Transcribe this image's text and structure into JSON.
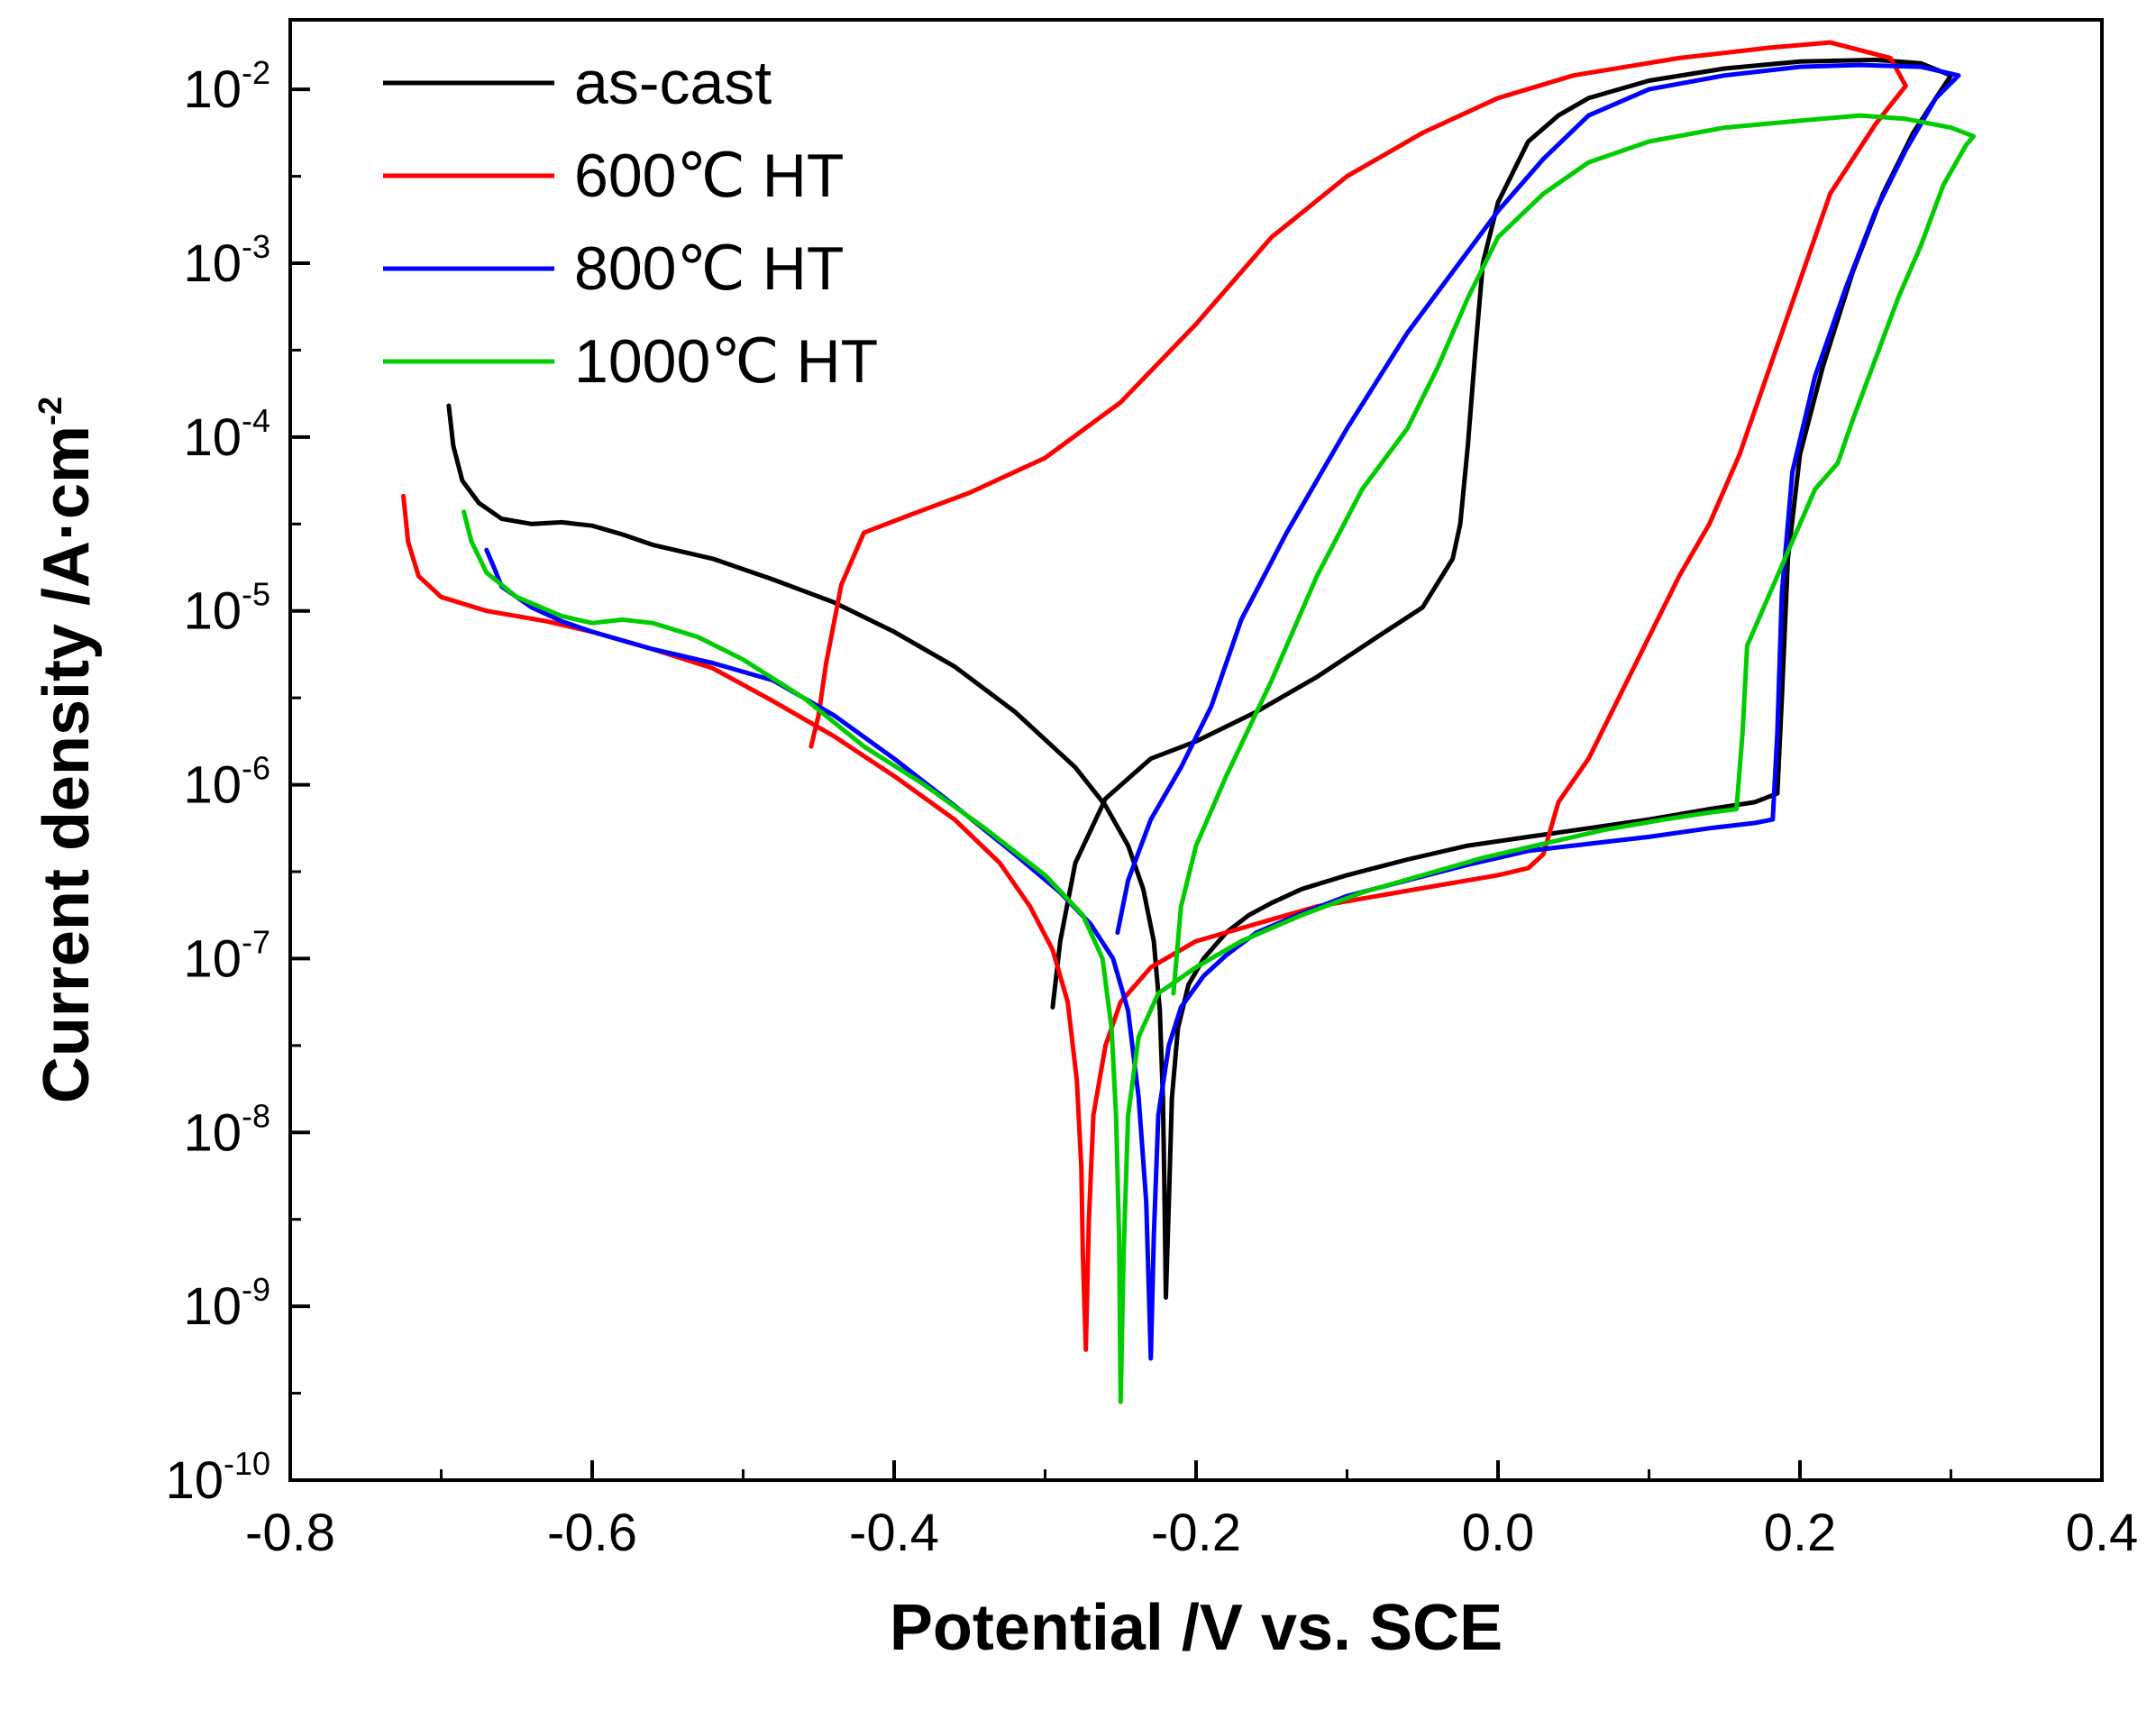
{
  "chart_data": {
    "type": "line",
    "title": "",
    "xlabel": "Potential /V vs. SCE",
    "ylabel_main": "Current density /A·cm",
    "ylabel_sup": "-2",
    "xlim": [
      -0.8,
      0.4
    ],
    "ylim_log10": [
      -10,
      -1.6
    ],
    "yscale": "log",
    "x_ticks": [
      {
        "value": -0.8,
        "label": "-0.8"
      },
      {
        "value": -0.6,
        "label": "-0.6"
      },
      {
        "value": -0.4,
        "label": "-0.4"
      },
      {
        "value": -0.2,
        "label": "-0.2"
      },
      {
        "value": 0.0,
        "label": "0.0"
      },
      {
        "value": 0.2,
        "label": "0.2"
      },
      {
        "value": 0.4,
        "label": "0.4"
      }
    ],
    "y_ticks": [
      {
        "exp": -2,
        "base": "10",
        "sup": "-2"
      },
      {
        "exp": -3,
        "base": "10",
        "sup": "-3"
      },
      {
        "exp": -4,
        "base": "10",
        "sup": "-4"
      },
      {
        "exp": -5,
        "base": "10",
        "sup": "-5"
      },
      {
        "exp": -6,
        "base": "10",
        "sup": "-6"
      },
      {
        "exp": -7,
        "base": "10",
        "sup": "-7"
      },
      {
        "exp": -8,
        "base": "10",
        "sup": "-8"
      },
      {
        "exp": -9,
        "base": "10",
        "sup": "-9"
      },
      {
        "exp": -10,
        "base": "10",
        "sup": "-10"
      }
    ],
    "legend_position": "top-left",
    "series": [
      {
        "name": "as-cast",
        "color": "#000000",
        "points": [
          [
            -0.695,
            -3.82
          ],
          [
            -0.692,
            -4.05
          ],
          [
            -0.686,
            -4.25
          ],
          [
            -0.675,
            -4.38
          ],
          [
            -0.66,
            -4.47
          ],
          [
            -0.64,
            -4.5
          ],
          [
            -0.62,
            -4.49
          ],
          [
            -0.6,
            -4.51
          ],
          [
            -0.58,
            -4.56
          ],
          [
            -0.56,
            -4.62
          ],
          [
            -0.52,
            -4.7
          ],
          [
            -0.48,
            -4.82
          ],
          [
            -0.44,
            -4.95
          ],
          [
            -0.4,
            -5.12
          ],
          [
            -0.36,
            -5.32
          ],
          [
            -0.32,
            -5.58
          ],
          [
            -0.28,
            -5.9
          ],
          [
            -0.26,
            -6.12
          ],
          [
            -0.245,
            -6.35
          ],
          [
            -0.235,
            -6.6
          ],
          [
            -0.228,
            -6.9
          ],
          [
            -0.224,
            -7.3
          ],
          [
            -0.222,
            -7.8
          ],
          [
            -0.221,
            -8.3
          ],
          [
            -0.22,
            -8.95
          ],
          [
            -0.218,
            -8.4
          ],
          [
            -0.216,
            -7.8
          ],
          [
            -0.212,
            -7.4
          ],
          [
            -0.205,
            -7.15
          ],
          [
            -0.195,
            -7.0
          ],
          [
            -0.18,
            -6.85
          ],
          [
            -0.165,
            -6.75
          ],
          [
            -0.15,
            -6.68
          ],
          [
            -0.13,
            -6.6
          ],
          [
            -0.1,
            -6.52
          ],
          [
            -0.06,
            -6.43
          ],
          [
            -0.02,
            -6.35
          ],
          [
            0.02,
            -6.3
          ],
          [
            0.06,
            -6.25
          ],
          [
            0.1,
            -6.2
          ],
          [
            0.14,
            -6.14
          ],
          [
            0.17,
            -6.1
          ],
          [
            0.185,
            -6.05
          ],
          [
            0.188,
            -5.5
          ],
          [
            0.192,
            -4.7
          ],
          [
            0.2,
            -4.1
          ],
          [
            0.215,
            -3.6
          ],
          [
            0.235,
            -3.05
          ],
          [
            0.255,
            -2.6
          ],
          [
            0.275,
            -2.25
          ],
          [
            0.29,
            -2.05
          ],
          [
            0.3,
            -1.92
          ],
          [
            0.28,
            -1.85
          ],
          [
            0.25,
            -1.83
          ],
          [
            0.2,
            -1.84
          ],
          [
            0.15,
            -1.88
          ],
          [
            0.1,
            -1.95
          ],
          [
            0.06,
            -2.05
          ],
          [
            0.04,
            -2.15
          ],
          [
            0.02,
            -2.3
          ],
          [
            0.0,
            -2.65
          ],
          [
            -0.01,
            -3.0
          ],
          [
            -0.015,
            -3.5
          ],
          [
            -0.02,
            -4.05
          ],
          [
            -0.025,
            -4.5
          ],
          [
            -0.03,
            -4.7
          ],
          [
            -0.05,
            -4.98
          ],
          [
            -0.08,
            -5.15
          ],
          [
            -0.12,
            -5.38
          ],
          [
            -0.16,
            -5.58
          ],
          [
            -0.2,
            -5.75
          ],
          [
            -0.23,
            -5.85
          ],
          [
            -0.26,
            -6.08
          ],
          [
            -0.28,
            -6.45
          ],
          [
            -0.29,
            -6.9
          ],
          [
            -0.295,
            -7.28
          ]
        ]
      },
      {
        "name": "600℃ HT",
        "color": "#ff0000",
        "points": [
          [
            -0.725,
            -4.34
          ],
          [
            -0.722,
            -4.6
          ],
          [
            -0.715,
            -4.8
          ],
          [
            -0.7,
            -4.92
          ],
          [
            -0.67,
            -5.0
          ],
          [
            -0.63,
            -5.06
          ],
          [
            -0.6,
            -5.12
          ],
          [
            -0.56,
            -5.22
          ],
          [
            -0.52,
            -5.33
          ],
          [
            -0.48,
            -5.52
          ],
          [
            -0.44,
            -5.72
          ],
          [
            -0.4,
            -5.95
          ],
          [
            -0.36,
            -6.2
          ],
          [
            -0.33,
            -6.45
          ],
          [
            -0.31,
            -6.7
          ],
          [
            -0.295,
            -6.95
          ],
          [
            -0.285,
            -7.25
          ],
          [
            -0.279,
            -7.7
          ],
          [
            -0.276,
            -8.2
          ],
          [
            -0.275,
            -8.7
          ],
          [
            -0.273,
            -9.25
          ],
          [
            -0.271,
            -8.5
          ],
          [
            -0.268,
            -7.9
          ],
          [
            -0.26,
            -7.5
          ],
          [
            -0.25,
            -7.25
          ],
          [
            -0.23,
            -7.05
          ],
          [
            -0.2,
            -6.9
          ],
          [
            -0.16,
            -6.8
          ],
          [
            -0.12,
            -6.7
          ],
          [
            -0.08,
            -6.64
          ],
          [
            -0.04,
            -6.58
          ],
          [
            0.0,
            -6.52
          ],
          [
            0.02,
            -6.48
          ],
          [
            0.03,
            -6.4
          ],
          [
            0.04,
            -6.1
          ],
          [
            0.06,
            -5.85
          ],
          [
            0.08,
            -5.5
          ],
          [
            0.1,
            -5.15
          ],
          [
            0.12,
            -4.8
          ],
          [
            0.14,
            -4.5
          ],
          [
            0.16,
            -4.1
          ],
          [
            0.18,
            -3.6
          ],
          [
            0.2,
            -3.1
          ],
          [
            0.22,
            -2.6
          ],
          [
            0.25,
            -2.2
          ],
          [
            0.27,
            -1.98
          ],
          [
            0.26,
            -1.82
          ],
          [
            0.22,
            -1.73
          ],
          [
            0.18,
            -1.76
          ],
          [
            0.12,
            -1.82
          ],
          [
            0.05,
            -1.92
          ],
          [
            0.0,
            -2.05
          ],
          [
            -0.05,
            -2.25
          ],
          [
            -0.1,
            -2.5
          ],
          [
            -0.15,
            -2.85
          ],
          [
            -0.2,
            -3.35
          ],
          [
            -0.25,
            -3.8
          ],
          [
            -0.3,
            -4.12
          ],
          [
            -0.35,
            -4.32
          ],
          [
            -0.39,
            -4.45
          ],
          [
            -0.42,
            -4.55
          ],
          [
            -0.435,
            -4.85
          ],
          [
            -0.445,
            -5.3
          ],
          [
            -0.45,
            -5.6
          ],
          [
            -0.455,
            -5.78
          ]
        ]
      },
      {
        "name": "800℃ HT",
        "color": "#0000ff",
        "points": [
          [
            -0.67,
            -4.65
          ],
          [
            -0.665,
            -4.75
          ],
          [
            -0.66,
            -4.86
          ],
          [
            -0.64,
            -4.98
          ],
          [
            -0.62,
            -5.06
          ],
          [
            -0.6,
            -5.12
          ],
          [
            -0.56,
            -5.22
          ],
          [
            -0.52,
            -5.3
          ],
          [
            -0.48,
            -5.4
          ],
          [
            -0.44,
            -5.6
          ],
          [
            -0.4,
            -5.85
          ],
          [
            -0.36,
            -6.12
          ],
          [
            -0.32,
            -6.4
          ],
          [
            -0.29,
            -6.62
          ],
          [
            -0.27,
            -6.8
          ],
          [
            -0.255,
            -7.0
          ],
          [
            -0.245,
            -7.3
          ],
          [
            -0.238,
            -7.8
          ],
          [
            -0.233,
            -8.4
          ],
          [
            -0.23,
            -9.3
          ],
          [
            -0.228,
            -8.6
          ],
          [
            -0.225,
            -7.9
          ],
          [
            -0.218,
            -7.5
          ],
          [
            -0.21,
            -7.28
          ],
          [
            -0.195,
            -7.1
          ],
          [
            -0.18,
            -6.98
          ],
          [
            -0.16,
            -6.85
          ],
          [
            -0.13,
            -6.74
          ],
          [
            -0.1,
            -6.64
          ],
          [
            -0.06,
            -6.55
          ],
          [
            -0.02,
            -6.46
          ],
          [
            0.02,
            -6.38
          ],
          [
            0.06,
            -6.34
          ],
          [
            0.1,
            -6.3
          ],
          [
            0.14,
            -6.25
          ],
          [
            0.17,
            -6.22
          ],
          [
            0.182,
            -6.2
          ],
          [
            0.185,
            -5.7
          ],
          [
            0.188,
            -4.9
          ],
          [
            0.195,
            -4.2
          ],
          [
            0.21,
            -3.65
          ],
          [
            0.23,
            -3.15
          ],
          [
            0.25,
            -2.7
          ],
          [
            0.27,
            -2.35
          ],
          [
            0.29,
            -2.05
          ],
          [
            0.305,
            -1.92
          ],
          [
            0.28,
            -1.87
          ],
          [
            0.24,
            -1.86
          ],
          [
            0.2,
            -1.87
          ],
          [
            0.15,
            -1.92
          ],
          [
            0.1,
            -2.0
          ],
          [
            0.06,
            -2.15
          ],
          [
            0.03,
            -2.4
          ],
          [
            0.0,
            -2.7
          ],
          [
            -0.03,
            -3.05
          ],
          [
            -0.06,
            -3.4
          ],
          [
            -0.1,
            -3.95
          ],
          [
            -0.14,
            -4.55
          ],
          [
            -0.17,
            -5.05
          ],
          [
            -0.19,
            -5.55
          ],
          [
            -0.21,
            -5.9
          ],
          [
            -0.23,
            -6.2
          ],
          [
            -0.245,
            -6.55
          ],
          [
            -0.252,
            -6.85
          ]
        ]
      },
      {
        "name": "1000℃ HT",
        "color": "#00cc00",
        "points": [
          [
            -0.685,
            -4.43
          ],
          [
            -0.68,
            -4.6
          ],
          [
            -0.67,
            -4.78
          ],
          [
            -0.65,
            -4.92
          ],
          [
            -0.62,
            -5.03
          ],
          [
            -0.6,
            -5.07
          ],
          [
            -0.58,
            -5.05
          ],
          [
            -0.56,
            -5.07
          ],
          [
            -0.53,
            -5.15
          ],
          [
            -0.5,
            -5.28
          ],
          [
            -0.46,
            -5.5
          ],
          [
            -0.42,
            -5.78
          ],
          [
            -0.38,
            -6.0
          ],
          [
            -0.34,
            -6.25
          ],
          [
            -0.3,
            -6.52
          ],
          [
            -0.275,
            -6.75
          ],
          [
            -0.262,
            -7.0
          ],
          [
            -0.256,
            -7.4
          ],
          [
            -0.253,
            -7.9
          ],
          [
            -0.251,
            -8.6
          ],
          [
            -0.25,
            -9.55
          ],
          [
            -0.248,
            -8.7
          ],
          [
            -0.245,
            -7.9
          ],
          [
            -0.238,
            -7.45
          ],
          [
            -0.225,
            -7.2
          ],
          [
            -0.2,
            -7.05
          ],
          [
            -0.17,
            -6.9
          ],
          [
            -0.13,
            -6.75
          ],
          [
            -0.09,
            -6.62
          ],
          [
            -0.05,
            -6.52
          ],
          [
            -0.01,
            -6.42
          ],
          [
            0.03,
            -6.34
          ],
          [
            0.07,
            -6.26
          ],
          [
            0.11,
            -6.2
          ],
          [
            0.14,
            -6.16
          ],
          [
            0.158,
            -6.14
          ],
          [
            0.162,
            -5.7
          ],
          [
            0.165,
            -5.2
          ],
          [
            0.175,
            -5.0
          ],
          [
            0.19,
            -4.7
          ],
          [
            0.21,
            -4.3
          ],
          [
            0.225,
            -4.15
          ],
          [
            0.235,
            -3.9
          ],
          [
            0.25,
            -3.55
          ],
          [
            0.265,
            -3.2
          ],
          [
            0.28,
            -2.9
          ],
          [
            0.295,
            -2.55
          ],
          [
            0.31,
            -2.32
          ],
          [
            0.315,
            -2.27
          ],
          [
            0.3,
            -2.22
          ],
          [
            0.27,
            -2.17
          ],
          [
            0.24,
            -2.15
          ],
          [
            0.2,
            -2.18
          ],
          [
            0.15,
            -2.22
          ],
          [
            0.1,
            -2.3
          ],
          [
            0.06,
            -2.42
          ],
          [
            0.03,
            -2.6
          ],
          [
            0.0,
            -2.85
          ],
          [
            -0.02,
            -3.2
          ],
          [
            -0.04,
            -3.6
          ],
          [
            -0.06,
            -3.95
          ],
          [
            -0.09,
            -4.3
          ],
          [
            -0.12,
            -4.8
          ],
          [
            -0.15,
            -5.4
          ],
          [
            -0.18,
            -5.95
          ],
          [
            -0.2,
            -6.35
          ],
          [
            -0.21,
            -6.7
          ],
          [
            -0.215,
            -7.2
          ]
        ]
      }
    ]
  }
}
